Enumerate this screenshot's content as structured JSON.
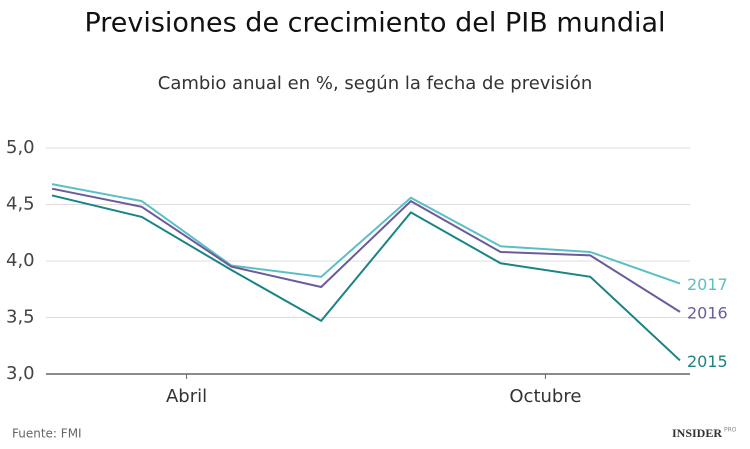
{
  "chart_data": {
    "type": "line",
    "title": "Previsiones de crecimiento del PIB mundial",
    "subtitle": "Cambio anual en %, según la fecha de previsión",
    "source": "Fuente: FMI",
    "brand": "INSIDER",
    "brand_tag": "PRO",
    "x": [
      0,
      1,
      2,
      3,
      4,
      5,
      6,
      7
    ],
    "xlim": [
      0,
      7
    ],
    "xticks": [
      {
        "value": 1.5,
        "label": "Abril"
      },
      {
        "value": 5.5,
        "label": "Octubre"
      }
    ],
    "ylim": [
      3.0,
      5.0
    ],
    "yticks": [
      {
        "value": 3.0,
        "label": "3,0"
      },
      {
        "value": 3.5,
        "label": "3,5"
      },
      {
        "value": 4.0,
        "label": "4,0"
      },
      {
        "value": 4.5,
        "label": "4,5"
      },
      {
        "value": 5.0,
        "label": "5,0"
      }
    ],
    "grid": true,
    "series": [
      {
        "name": "2017",
        "color": "#5bbfc6",
        "values": [
          4.68,
          4.53,
          3.96,
          3.86,
          4.56,
          4.13,
          4.08,
          3.8
        ]
      },
      {
        "name": "2016",
        "color": "#6b5b9a",
        "values": [
          4.64,
          4.48,
          3.95,
          3.77,
          4.53,
          4.08,
          4.05,
          3.55
        ]
      },
      {
        "name": "2015",
        "color": "#1a8383",
        "values": [
          4.58,
          4.39,
          3.92,
          3.47,
          4.43,
          3.98,
          3.86,
          3.12
        ]
      }
    ]
  }
}
